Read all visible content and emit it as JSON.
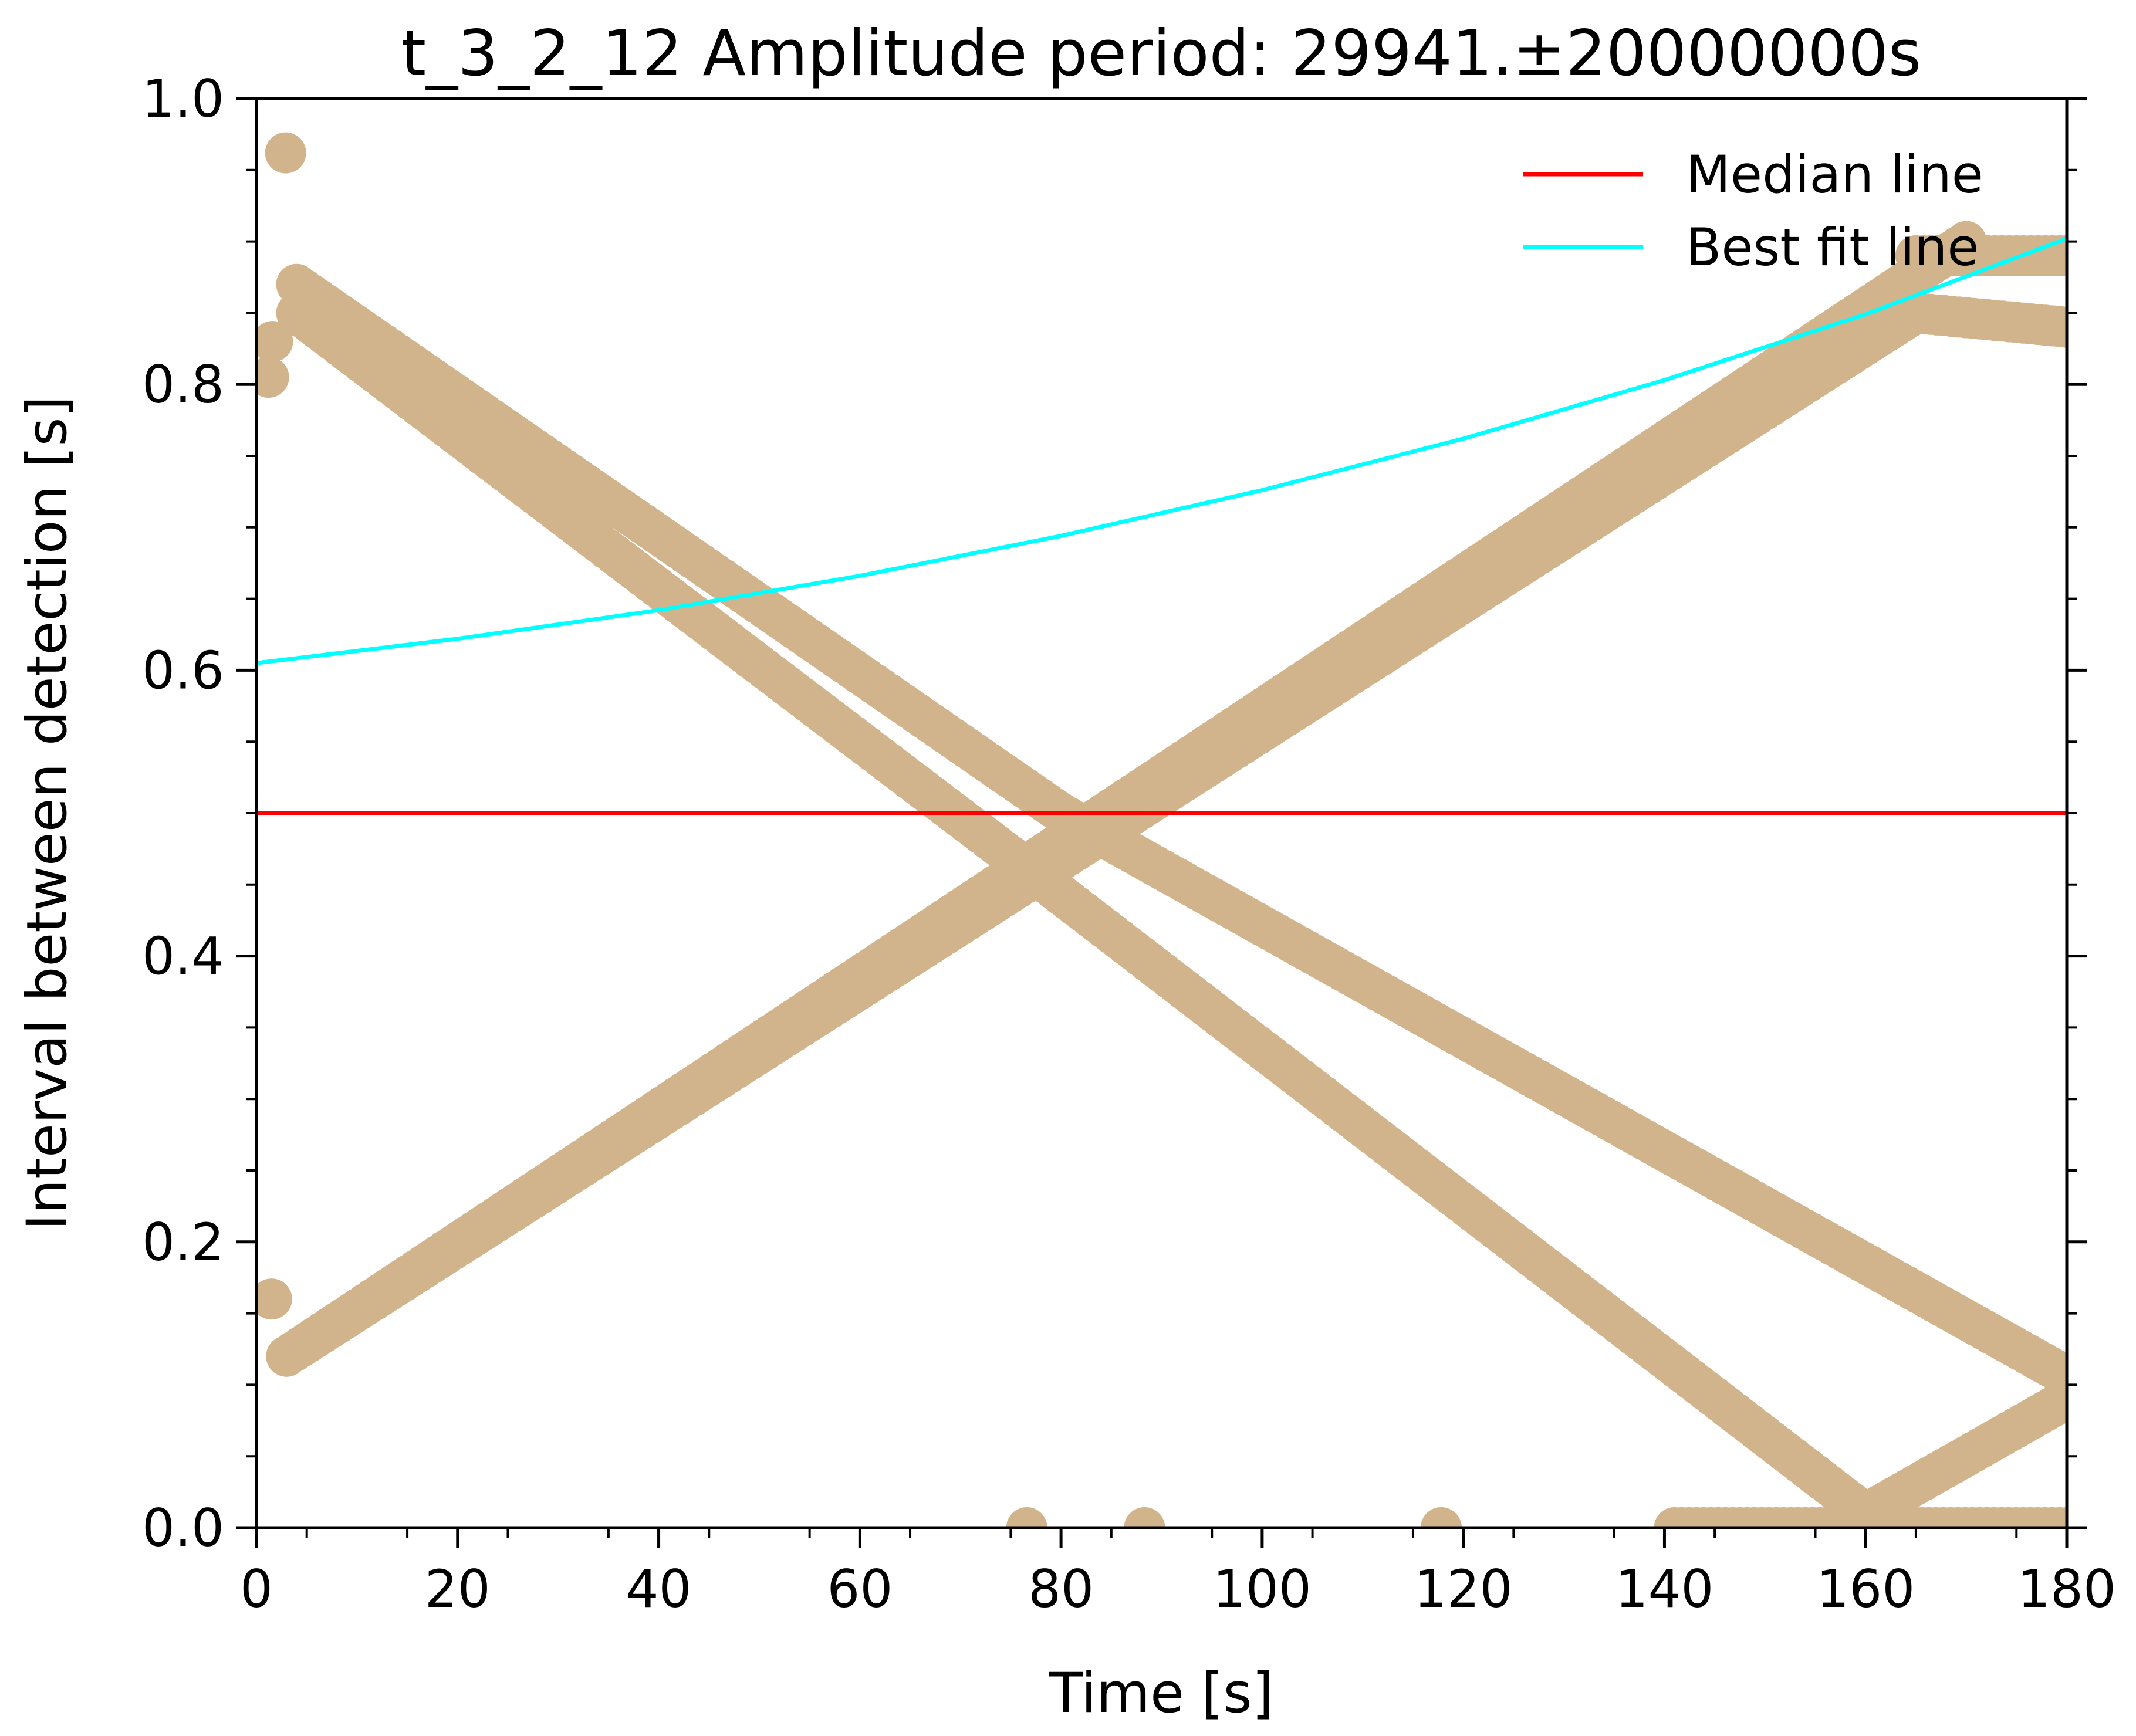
{
  "chart_data": {
    "type": "scatter",
    "title": "t_3_2_12 Amplitude period: 29941.±20000000s",
    "xlabel": "Time [s]",
    "ylabel": "Interval between detection [s]",
    "xlim": [
      0,
      180
    ],
    "ylim": [
      0,
      1.0
    ],
    "x_ticks": [
      "0",
      "20",
      "40",
      "60",
      "80",
      "100",
      "120",
      "140",
      "160",
      "180"
    ],
    "y_ticks": [
      "0.0",
      "0.2",
      "0.4",
      "0.6",
      "0.8",
      "1.0"
    ],
    "grid": false,
    "legend_position": "top-right",
    "colors": {
      "points": "#d2b48c",
      "median": "#ff0000",
      "fit": "#00ffff"
    },
    "series": [
      {
        "name": "Median line",
        "kind": "line",
        "x": [
          0,
          180
        ],
        "y": [
          0.5,
          0.5
        ]
      },
      {
        "name": "Best fit line",
        "kind": "line",
        "x": [
          0,
          20,
          40,
          60,
          80,
          100,
          120,
          140,
          160,
          180
        ],
        "y": [
          0.605,
          0.622,
          0.642,
          0.666,
          0.694,
          0.726,
          0.762,
          0.803,
          0.849,
          0.902
        ]
      }
    ],
    "scatter_tracks": [
      {
        "x": [
          3,
          170
        ],
        "y": [
          0.12,
          0.9
        ]
      },
      {
        "x": [
          3,
          165
        ],
        "y": [
          0.12,
          0.85
        ]
      },
      {
        "x": [
          4,
          80
        ],
        "y": [
          0.87,
          0.5
        ]
      },
      {
        "x": [
          80,
          179
        ],
        "y": [
          0.5,
          0.11
        ]
      },
      {
        "x": [
          4,
          75
        ],
        "y": [
          0.85,
          0.47
        ]
      },
      {
        "x": [
          75,
          160
        ],
        "y": [
          0.47,
          0.01
        ]
      },
      {
        "x": [
          160,
          180
        ],
        "y": [
          0.01,
          0.09
        ]
      },
      {
        "x": [
          165,
          180
        ],
        "y": [
          0.89,
          0.89
        ]
      },
      {
        "x": [
          165,
          180
        ],
        "y": [
          0.85,
          0.84
        ]
      },
      {
        "x": [
          141,
          180
        ],
        "y": [
          0.0,
          0.0
        ]
      }
    ],
    "scatter_points": {
      "x": [
        1.2,
        1.6,
        1.5,
        2.9,
        76.6,
        88.3,
        117.8
      ],
      "y": [
        0.805,
        0.83,
        0.16,
        0.962,
        0.0,
        0.0,
        0.0
      ]
    }
  }
}
